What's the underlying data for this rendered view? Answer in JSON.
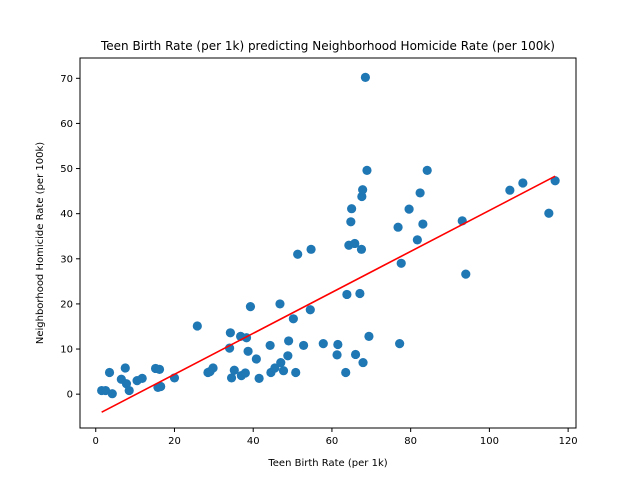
{
  "chart_data": {
    "type": "scatter",
    "title": "Teen Birth Rate (per 1k) predicting Neighborhood Homicide Rate (per 100k)",
    "xlabel": "Teen Birth Rate (per 1k)",
    "ylabel": "Neighborhood Homicide Rate (per 100k)",
    "xlim": [
      -4,
      122
    ],
    "ylim": [
      -7.5,
      74.5
    ],
    "xticks": [
      0,
      20,
      40,
      60,
      80,
      100,
      120
    ],
    "yticks": [
      0,
      10,
      20,
      30,
      40,
      50,
      60,
      70
    ],
    "grid": false,
    "point_color": "#1f77b4",
    "line_color": "#ff0000",
    "series": [
      {
        "name": "observations",
        "kind": "scatter",
        "points": [
          [
            1.5,
            0.8
          ],
          [
            2.5,
            0.8
          ],
          [
            3.5,
            4.8
          ],
          [
            4.2,
            0.1
          ],
          [
            6.5,
            3.3
          ],
          [
            7.5,
            5.8
          ],
          [
            7.8,
            2.3
          ],
          [
            8.5,
            0.8
          ],
          [
            10.5,
            3.0
          ],
          [
            11.8,
            3.5
          ],
          [
            15.2,
            5.7
          ],
          [
            15.8,
            1.5
          ],
          [
            16.2,
            5.5
          ],
          [
            16.5,
            1.7
          ],
          [
            20.0,
            3.6
          ],
          [
            25.8,
            15.1
          ],
          [
            28.5,
            4.8
          ],
          [
            29.0,
            5.0
          ],
          [
            29.8,
            5.8
          ],
          [
            34.0,
            10.2
          ],
          [
            34.2,
            13.6
          ],
          [
            34.5,
            3.6
          ],
          [
            35.2,
            5.3
          ],
          [
            36.8,
            12.8
          ],
          [
            37.0,
            4.1
          ],
          [
            38.0,
            4.7
          ],
          [
            38.3,
            12.5
          ],
          [
            38.7,
            9.5
          ],
          [
            39.3,
            19.4
          ],
          [
            40.8,
            7.8
          ],
          [
            41.5,
            3.5
          ],
          [
            44.3,
            10.8
          ],
          [
            44.5,
            4.8
          ],
          [
            45.5,
            5.8
          ],
          [
            46.8,
            20.0
          ],
          [
            47.0,
            7.0
          ],
          [
            47.7,
            5.2
          ],
          [
            48.8,
            8.5
          ],
          [
            49.0,
            11.8
          ],
          [
            50.2,
            16.7
          ],
          [
            50.8,
            4.8
          ],
          [
            51.3,
            31.0
          ],
          [
            52.8,
            10.8
          ],
          [
            54.5,
            18.7
          ],
          [
            54.7,
            32.1
          ],
          [
            57.8,
            11.2
          ],
          [
            61.3,
            8.7
          ],
          [
            61.5,
            11.0
          ],
          [
            63.5,
            4.8
          ],
          [
            63.8,
            22.1
          ],
          [
            64.3,
            33.0
          ],
          [
            64.8,
            38.2
          ],
          [
            65.0,
            41.1
          ],
          [
            65.8,
            33.4
          ],
          [
            66.0,
            8.8
          ],
          [
            67.1,
            22.3
          ],
          [
            67.5,
            32.1
          ],
          [
            67.6,
            43.8
          ],
          [
            67.8,
            45.3
          ],
          [
            67.9,
            7.0
          ],
          [
            68.5,
            70.2
          ],
          [
            68.9,
            49.6
          ],
          [
            69.4,
            12.8
          ],
          [
            76.8,
            37.0
          ],
          [
            77.2,
            11.2
          ],
          [
            77.6,
            29.0
          ],
          [
            79.6,
            41.0
          ],
          [
            81.7,
            34.2
          ],
          [
            82.4,
            44.6
          ],
          [
            83.1,
            37.7
          ],
          [
            84.2,
            49.6
          ],
          [
            93.1,
            38.4
          ],
          [
            94.0,
            26.6
          ],
          [
            105.2,
            45.2
          ],
          [
            108.5,
            46.8
          ],
          [
            115.1,
            40.1
          ],
          [
            116.7,
            47.3
          ]
        ]
      },
      {
        "name": "regression line",
        "kind": "line",
        "points": [
          [
            1.5,
            -4.0
          ],
          [
            116.7,
            48.3
          ]
        ]
      }
    ]
  }
}
